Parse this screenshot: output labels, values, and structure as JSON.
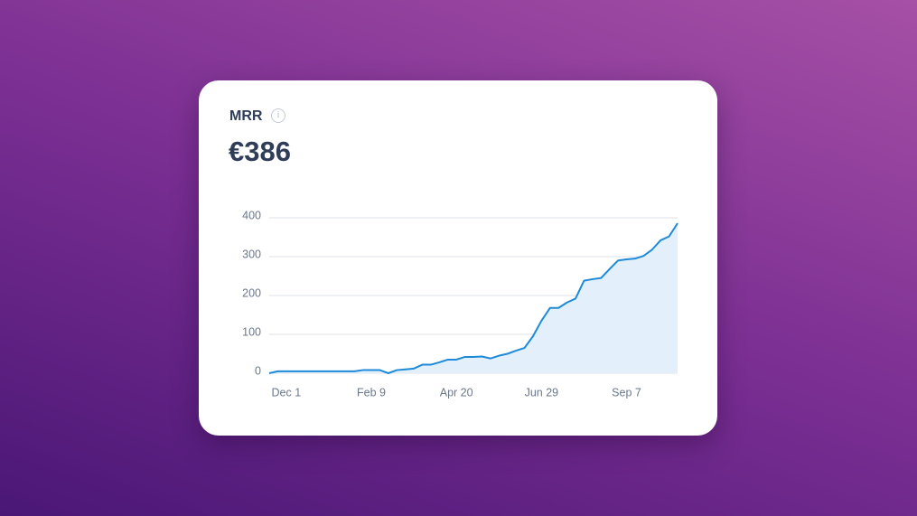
{
  "card": {
    "title": "MRR",
    "value": "€386"
  },
  "chart_data": {
    "type": "area",
    "categories": [
      null,
      null,
      "Dec 1",
      null,
      null,
      null,
      null,
      null,
      null,
      null,
      null,
      null,
      "Feb 9",
      null,
      null,
      null,
      null,
      null,
      null,
      null,
      null,
      null,
      "Apr 20",
      null,
      null,
      null,
      null,
      null,
      null,
      null,
      null,
      null,
      "Jun 29",
      null,
      null,
      null,
      null,
      null,
      null,
      null,
      null,
      null,
      "Sep 7",
      null,
      null,
      null,
      null,
      null,
      null
    ],
    "values": [
      0,
      5,
      5,
      5,
      5,
      5,
      5,
      5,
      5,
      5,
      5,
      8,
      8,
      8,
      0,
      8,
      10,
      12,
      22,
      22,
      28,
      35,
      35,
      42,
      42,
      43,
      38,
      45,
      50,
      58,
      65,
      95,
      135,
      168,
      168,
      182,
      192,
      238,
      242,
      245,
      268,
      290,
      293,
      295,
      302,
      318,
      342,
      352,
      386
    ],
    "color": "#1f8ad8",
    "fill": "#e3f0fb",
    "ylim": [
      0,
      400
    ],
    "yticks": [
      0,
      100,
      200,
      300,
      400
    ],
    "grid": true
  }
}
